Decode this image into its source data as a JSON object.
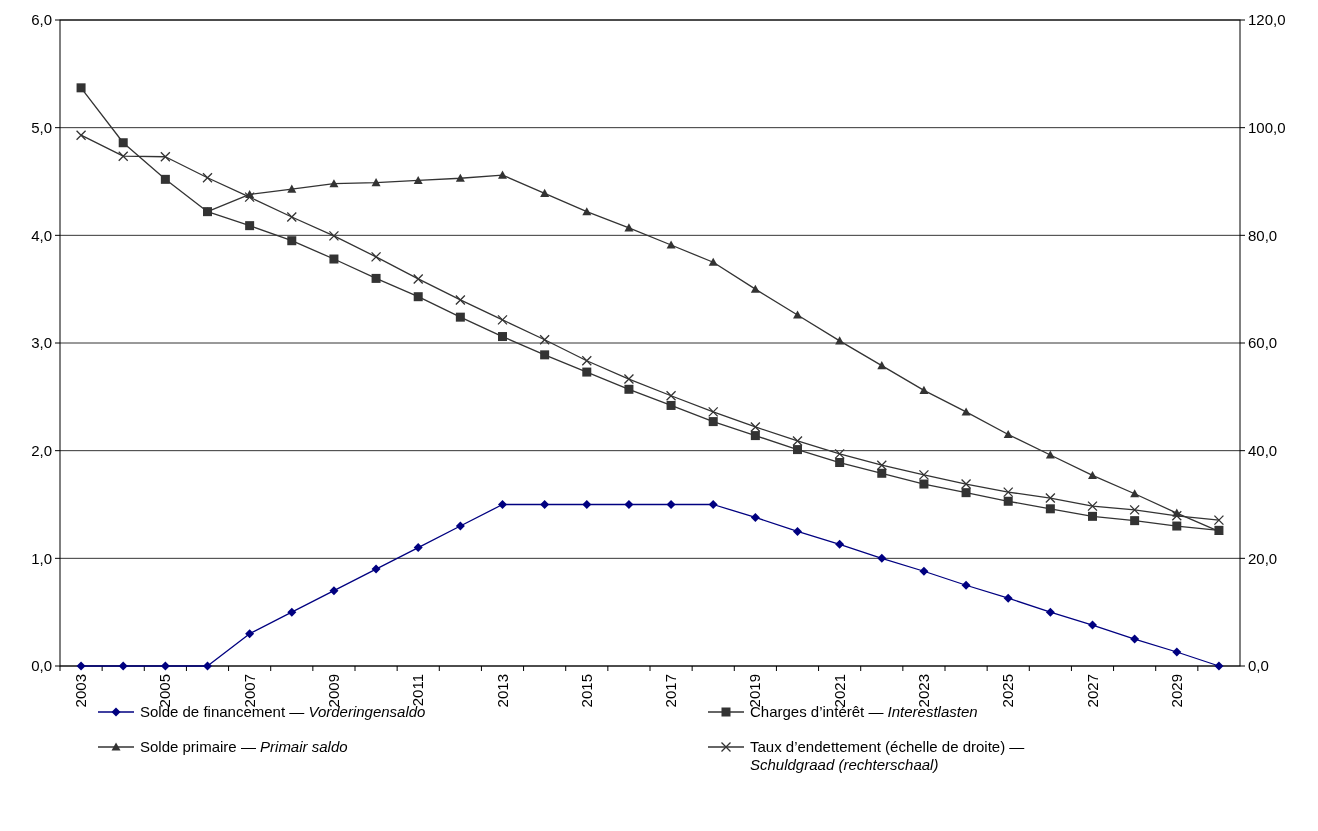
{
  "chart_data": {
    "type": "line",
    "categories": [
      "2003",
      null,
      "2005",
      null,
      "2007",
      null,
      "2009",
      null,
      "2011",
      null,
      "2013",
      null,
      "2015",
      null,
      "2017",
      null,
      "2019",
      null,
      "2021",
      null,
      "2023",
      null,
      "2025",
      null,
      "2027",
      null,
      "2029",
      null
    ],
    "ylim": [
      0,
      6
    ],
    "yticks": [
      {
        "value": 0,
        "label": "0,0"
      },
      {
        "value": 1,
        "label": "1,0"
      },
      {
        "value": 2,
        "label": "2,0"
      },
      {
        "value": 3,
        "label": "3,0"
      },
      {
        "value": 4,
        "label": "4,0"
      },
      {
        "value": 5,
        "label": "5,0"
      },
      {
        "value": 6,
        "label": "6,0"
      }
    ],
    "y2lim": [
      0,
      120
    ],
    "y2ticks": [
      {
        "value": 0,
        "label": "0,0"
      },
      {
        "value": 20,
        "label": "20,0"
      },
      {
        "value": 40,
        "label": "40,0"
      },
      {
        "value": 60,
        "label": "60,0"
      },
      {
        "value": 80,
        "label": "80,0"
      },
      {
        "value": 100,
        "label": "100,0"
      },
      {
        "value": 120,
        "label": "120,0"
      }
    ],
    "grid": "y",
    "legend": "bottom",
    "series": [
      {
        "name": "Solde de financement — Vorderingensaldo",
        "color": "#000080",
        "marker": "diamond",
        "values": [
          0,
          0,
          0,
          0,
          0.3,
          0.5,
          0.7,
          0.9,
          1.1,
          1.3,
          1.5,
          1.5,
          1.5,
          1.5,
          1.5,
          1.5,
          1.38,
          1.25,
          1.13,
          1.0,
          0.88,
          0.75,
          0.63,
          0.5,
          0.38,
          0.25,
          0.13,
          0
        ]
      },
      {
        "name": "Charges d’intérêt — Interestlasten",
        "color": "#333333",
        "marker": "square",
        "values": [
          5.37,
          4.86,
          4.52,
          4.22,
          4.09,
          3.95,
          3.78,
          3.6,
          3.43,
          3.24,
          3.06,
          2.89,
          2.73,
          2.57,
          2.42,
          2.27,
          2.14,
          2.01,
          1.89,
          1.79,
          1.69,
          1.61,
          1.53,
          1.46,
          1.39,
          1.35,
          1.3,
          1.26
        ]
      },
      {
        "name": "Solde primaire — Primair saldo",
        "color": "#333333",
        "marker": "triangle",
        "values": [
          null,
          null,
          null,
          4.22,
          4.38,
          4.43,
          4.48,
          4.49,
          4.51,
          4.53,
          4.56,
          4.39,
          4.22,
          4.07,
          3.91,
          3.75,
          3.5,
          3.26,
          3.02,
          2.79,
          2.56,
          2.36,
          2.15,
          1.96,
          1.77,
          1.6,
          1.42,
          1.25
        ]
      },
      {
        "name": "Taux d’endettement (échelle de droite) — Schuldgraad (rechterschaal)",
        "color": "#333333",
        "marker": "cross",
        "axis": "y2",
        "values": [
          98.6,
          94.7,
          94.6,
          90.7,
          87.1,
          83.4,
          79.9,
          76.0,
          71.9,
          68.0,
          64.3,
          60.6,
          56.7,
          53.3,
          50.2,
          47.2,
          44.4,
          41.8,
          39.4,
          37.3,
          35.5,
          33.8,
          32.3,
          31.2,
          29.7,
          29.0,
          27.9,
          27.1
        ]
      }
    ]
  }
}
